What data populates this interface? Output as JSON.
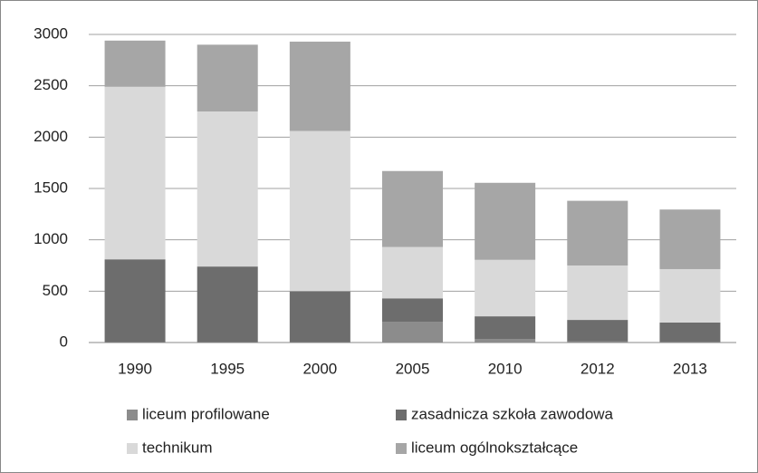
{
  "chart_data": {
    "type": "stacked_bar",
    "categories": [
      "1990",
      "1995",
      "2000",
      "2005",
      "2010",
      "2012",
      "2013"
    ],
    "series": [
      {
        "name": "liceum profilowane",
        "color": "#8c8c8c",
        "values": [
          0,
          0,
          0,
          200,
          35,
          10,
          5
        ]
      },
      {
        "name": "zasadnicza szkoła zawodowa",
        "color": "#6d6d6d",
        "values": [
          810,
          740,
          500,
          230,
          220,
          210,
          190
        ]
      },
      {
        "name": "technikum",
        "color": "#d9d9d9",
        "values": [
          1680,
          1510,
          1560,
          500,
          550,
          530,
          520
        ]
      },
      {
        "name": "liceum ogólnokształcące",
        "color": "#a6a6a6",
        "values": [
          450,
          650,
          870,
          740,
          750,
          630,
          580
        ]
      }
    ],
    "ylim": [
      0,
      3000
    ],
    "yticks": [
      0,
      500,
      1000,
      1500,
      2000,
      2500,
      3000
    ],
    "grid": true
  }
}
